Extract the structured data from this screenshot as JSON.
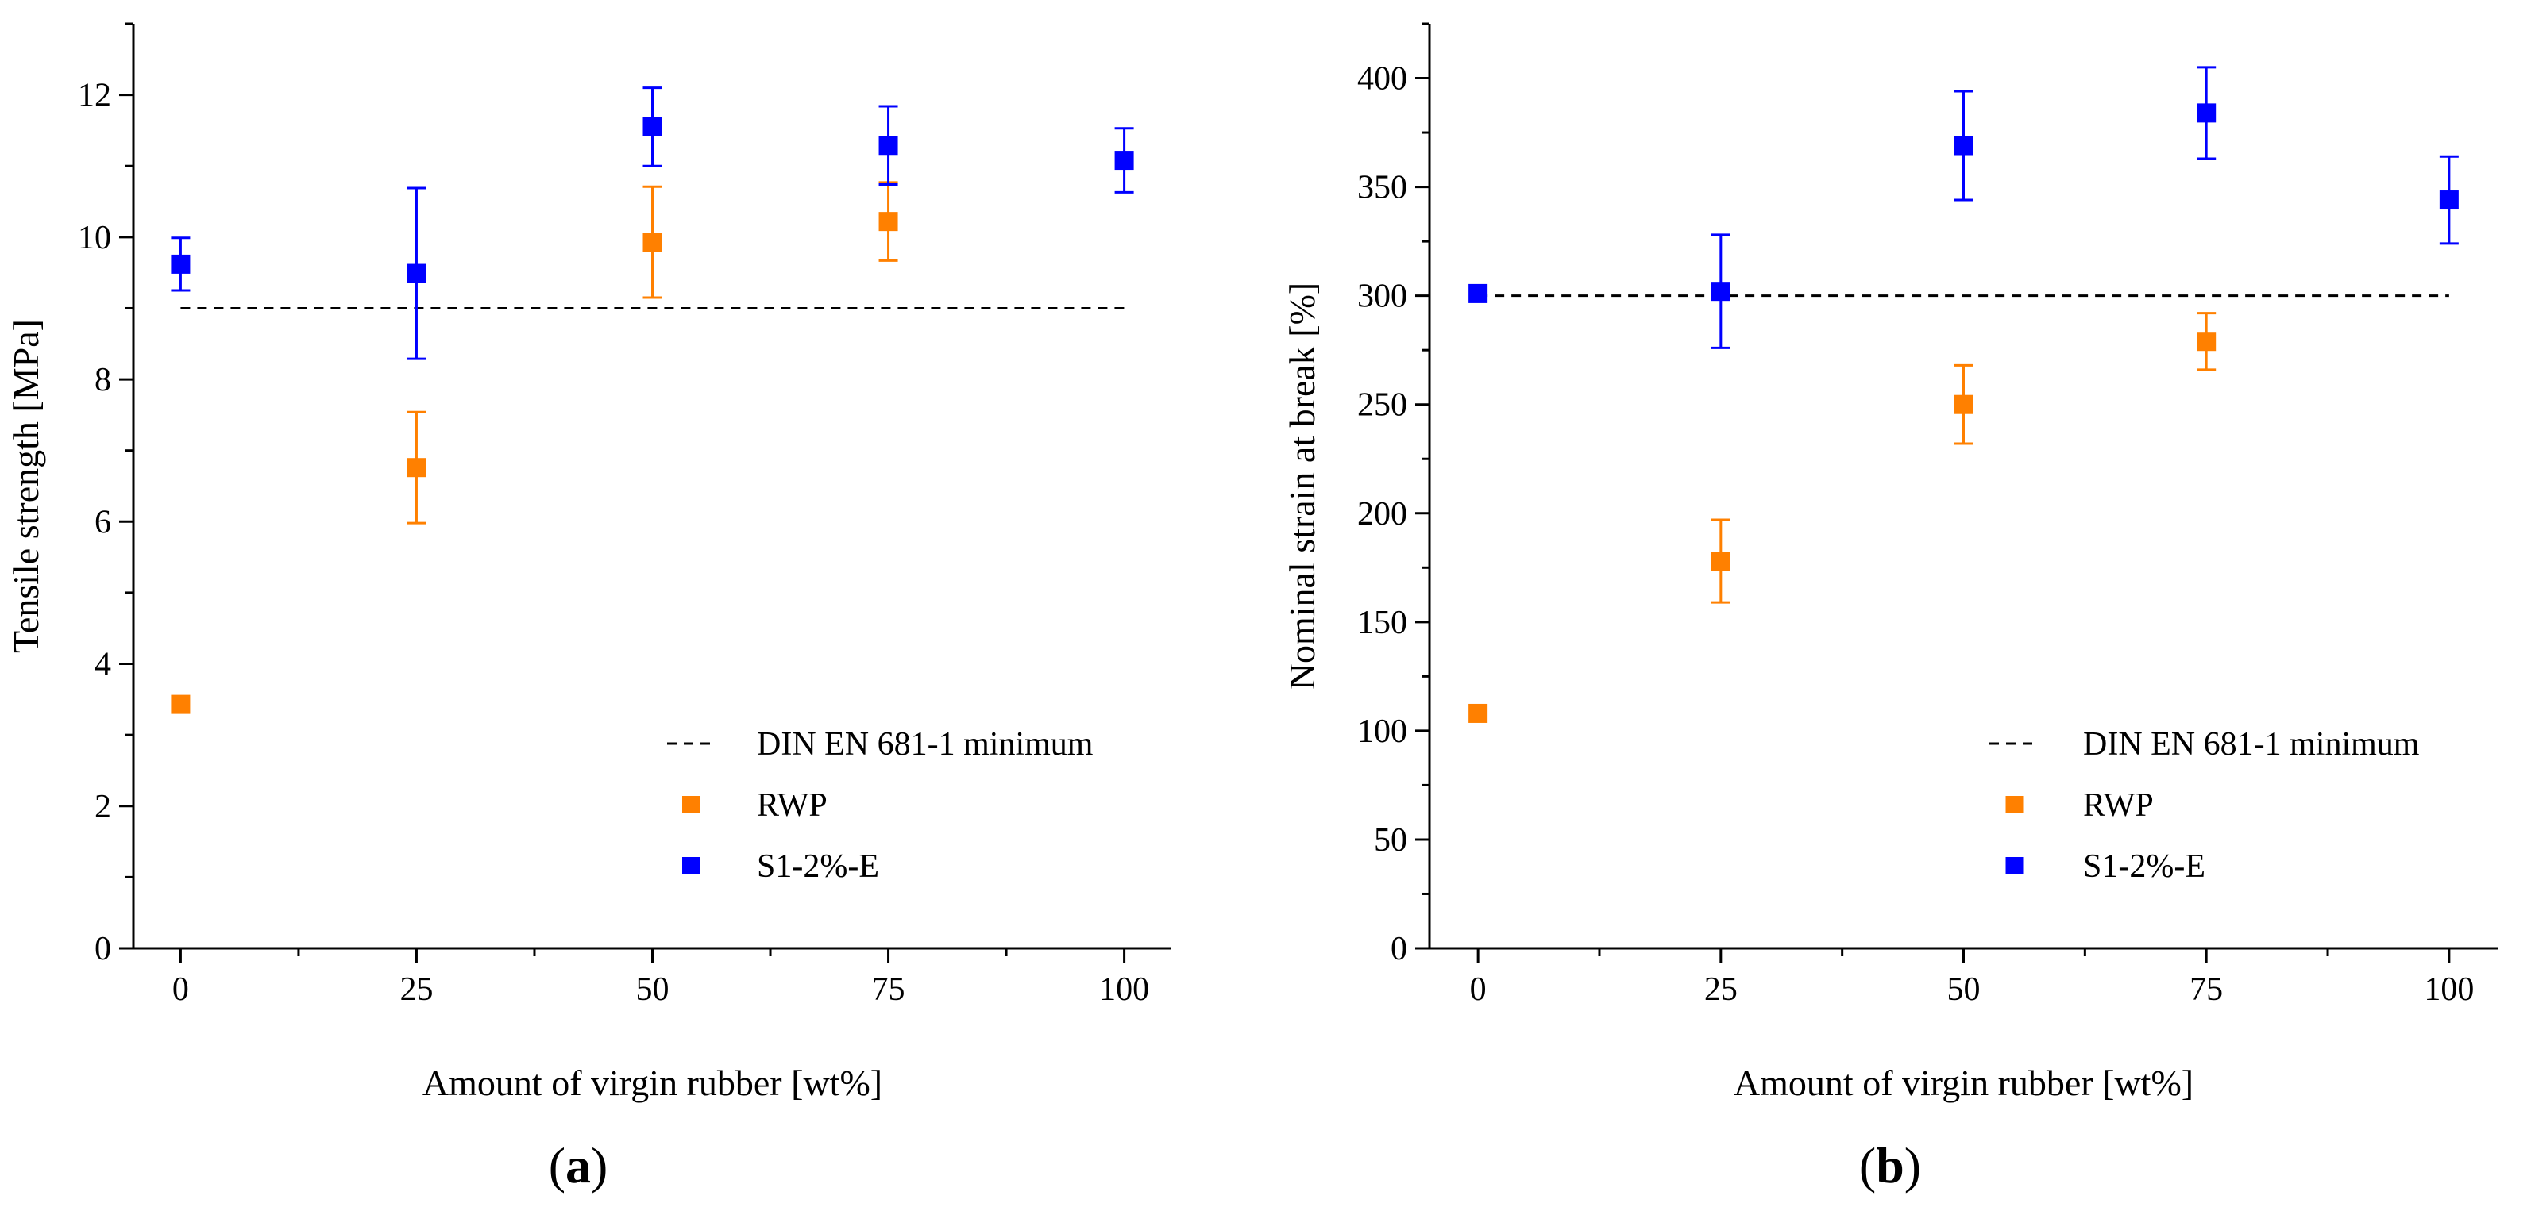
{
  "chart_data": [
    {
      "type": "scatter",
      "panel_label": "a",
      "xlabel": "Amount of virgin rubber [wt%]",
      "ylabel": "Tensile strength [MPa]",
      "xlim": [
        -5,
        105
      ],
      "ylim": [
        0,
        13
      ],
      "x_ticks": [
        0,
        25,
        50,
        75,
        100
      ],
      "x_tick_labels": [
        "0",
        "25",
        "50",
        "75",
        "100"
      ],
      "y_ticks": [
        0,
        2,
        4,
        6,
        8,
        10,
        12
      ],
      "y_tick_labels": [
        "0",
        "2",
        "4",
        "6",
        "8",
        "10",
        "12"
      ],
      "reference_line": {
        "name": "DIN EN 681-1 minimum",
        "value": 9,
        "x_range": [
          0,
          100
        ],
        "color": "#000000",
        "style": "dashed"
      },
      "legend_position": "bottom-right",
      "series": [
        {
          "name": "RWP",
          "color": "#ff8000",
          "points": [
            {
              "x": 0,
              "y": 3.43,
              "err": 0
            },
            {
              "x": 25,
              "y": 6.76,
              "err": 0.78
            },
            {
              "x": 50,
              "y": 9.93,
              "err": 0.78
            },
            {
              "x": 75,
              "y": 10.22,
              "err": 0.55
            }
          ]
        },
        {
          "name": "S1-2%-E",
          "color": "#0000ff",
          "points": [
            {
              "x": 0,
              "y": 9.62,
              "err": 0.37
            },
            {
              "x": 25,
              "y": 9.49,
              "err": 1.2
            },
            {
              "x": 50,
              "y": 11.55,
              "err": 0.55
            },
            {
              "x": 75,
              "y": 11.29,
              "err": 0.55
            },
            {
              "x": 100,
              "y": 11.08,
              "err": 0.45
            }
          ]
        }
      ]
    },
    {
      "type": "scatter",
      "panel_label": "b",
      "xlabel": "Amount of virgin rubber [wt%]",
      "ylabel": "Nominal strain at break [%]",
      "xlim": [
        -5,
        105
      ],
      "ylim": [
        0,
        425
      ],
      "x_ticks": [
        0,
        25,
        50,
        75,
        100
      ],
      "x_tick_labels": [
        "0",
        "25",
        "50",
        "75",
        "100"
      ],
      "y_ticks": [
        0,
        50,
        100,
        150,
        200,
        250,
        300,
        350,
        400
      ],
      "y_tick_labels": [
        "0",
        "50",
        "100",
        "150",
        "200",
        "250",
        "300",
        "350",
        "400"
      ],
      "reference_line": {
        "name": "DIN EN 681-1 minimum",
        "value": 300,
        "x_range": [
          0,
          100
        ],
        "color": "#000000",
        "style": "dashed"
      },
      "legend_position": "bottom-right",
      "series": [
        {
          "name": "RWP",
          "color": "#ff8000",
          "points": [
            {
              "x": 0,
              "y": 108,
              "err": 0
            },
            {
              "x": 25,
              "y": 178,
              "err": 19
            },
            {
              "x": 50,
              "y": 250,
              "err": 18
            },
            {
              "x": 75,
              "y": 279,
              "err": 13
            }
          ]
        },
        {
          "name": "S1-2%-E",
          "color": "#0000ff",
          "points": [
            {
              "x": 0,
              "y": 301,
              "err": 0
            },
            {
              "x": 25,
              "y": 302,
              "err": 26
            },
            {
              "x": 50,
              "y": 369,
              "err": 25
            },
            {
              "x": 75,
              "y": 384,
              "err": 21
            },
            {
              "x": 100,
              "y": 344,
              "err": 20
            }
          ]
        }
      ]
    }
  ]
}
